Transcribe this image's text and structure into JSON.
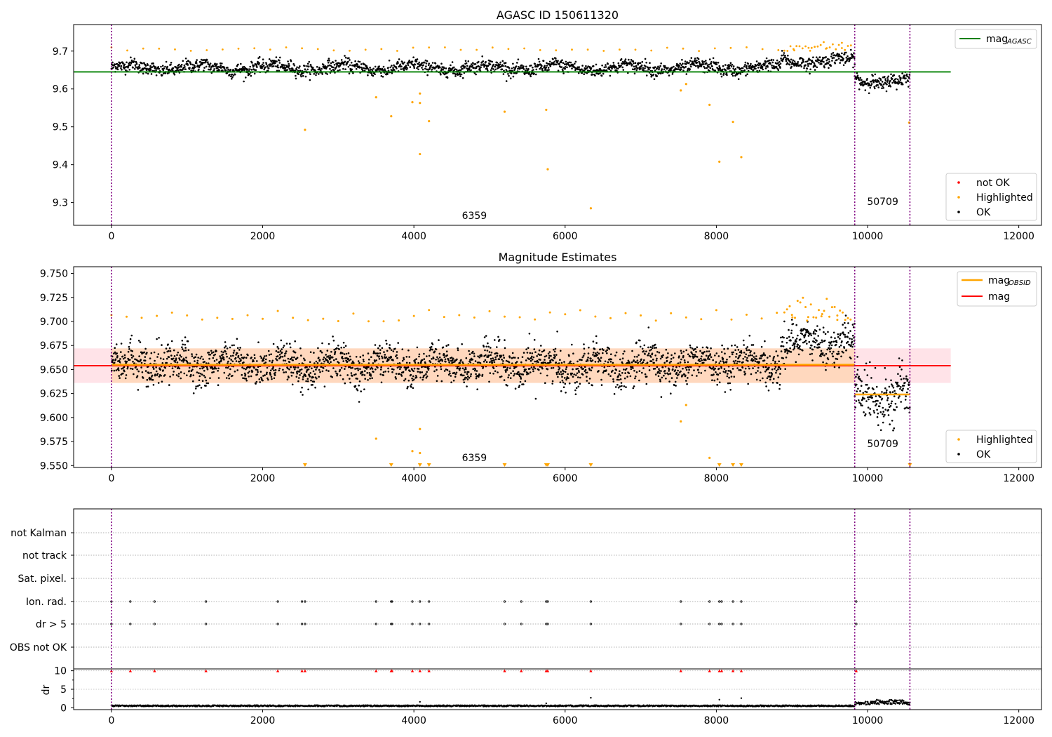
{
  "figure_title": "AGASC ID 150611320",
  "colors": {
    "ok": "#000000",
    "highlighted": "#ffa500",
    "not_ok": "#ff0000",
    "mag_agasc": "#008000",
    "mag_obsid": "#ffa500",
    "mag": "#ff0000",
    "band": "#ffc0cb",
    "obs_marker": "#800080"
  },
  "obs_markers": {
    "x": [
      0,
      9830,
      10560
    ],
    "labels": [
      {
        "text": "6359",
        "x": 4800
      },
      {
        "text": "50709",
        "x": 10200
      }
    ]
  },
  "chart_data": [
    {
      "type": "scatter",
      "title": "AGASC ID 150611320",
      "xlim": [
        -500,
        12300
      ],
      "ylim": [
        9.24,
        9.77
      ],
      "xticks": [
        0,
        2000,
        4000,
        6000,
        8000,
        10000,
        12000
      ],
      "yticks": [
        9.3,
        9.4,
        9.5,
        9.6,
        9.7
      ],
      "mag_agasc": 9.645,
      "legend_top": {
        "label": "mag",
        "sub": "AGASC"
      },
      "legend_bottom": [
        "not OK",
        "Highlighted",
        "OK"
      ],
      "segments": [
        {
          "x0": 0,
          "x1": 9830,
          "mean": 9.656,
          "spread": 0.012
        },
        {
          "x0": 9830,
          "x1": 10560,
          "mean": 9.623,
          "spread": 0.014
        }
      ],
      "highlighted_outliers": [
        [
          2560,
          9.492
        ],
        [
          3500,
          9.578
        ],
        [
          3700,
          9.528
        ],
        [
          3980,
          9.565
        ],
        [
          4080,
          9.588
        ],
        [
          4080,
          9.563
        ],
        [
          4080,
          9.428
        ],
        [
          4200,
          9.515
        ],
        [
          5200,
          9.54
        ],
        [
          5750,
          9.545
        ],
        [
          5770,
          9.388
        ],
        [
          6340,
          9.285
        ],
        [
          7530,
          9.596
        ],
        [
          7600,
          9.613
        ],
        [
          7910,
          9.558
        ],
        [
          8040,
          9.408
        ],
        [
          8220,
          9.513
        ],
        [
          8330,
          9.42
        ],
        [
          10550,
          9.511
        ]
      ]
    },
    {
      "type": "scatter",
      "title": "Magnitude Estimates",
      "xlim": [
        -500,
        12300
      ],
      "ylim": [
        9.548,
        9.757
      ],
      "xticks": [
        0,
        2000,
        4000,
        6000,
        8000,
        10000,
        12000
      ],
      "yticks": [
        9.55,
        9.575,
        9.6,
        9.625,
        9.65,
        9.675,
        9.7,
        9.725,
        9.75
      ],
      "mag": 9.654,
      "band": [
        9.636,
        9.672
      ],
      "mag_obsid": [
        {
          "x0": 0,
          "x1": 9830,
          "value": 9.655
        },
        {
          "x0": 9830,
          "x1": 10560,
          "value": 9.624
        }
      ],
      "legend_top": [
        {
          "label": "mag",
          "sub": "OBSID"
        },
        {
          "label": "mag",
          "sub": ""
        }
      ],
      "legend_bottom": [
        "Highlighted",
        "OK"
      ],
      "clipped_markers_x": [
        2560,
        3700,
        4080,
        4200,
        5200,
        5750,
        5770,
        6340,
        8040,
        8220,
        8330,
        10560
      ]
    },
    {
      "type": "flags",
      "categories": [
        "not Kalman",
        "not track",
        "Sat. pixel.",
        "Ion. rad.",
        "dr > 5",
        "OBS not OK"
      ],
      "flag_times": [
        0,
        250,
        570,
        1250,
        2200,
        2520,
        2560,
        3500,
        3700,
        3710,
        3980,
        4080,
        4200,
        5200,
        5420,
        5750,
        5770,
        6340,
        7530,
        7910,
        8040,
        8070,
        8220,
        8330,
        9850
      ],
      "flag_rows": [
        "Ion. rad.",
        "dr > 5"
      ],
      "dr_ylabel": "dr",
      "dr_yticks": [
        0,
        5,
        10
      ],
      "dr_ylim": [
        -0.5,
        10.5
      ]
    }
  ]
}
